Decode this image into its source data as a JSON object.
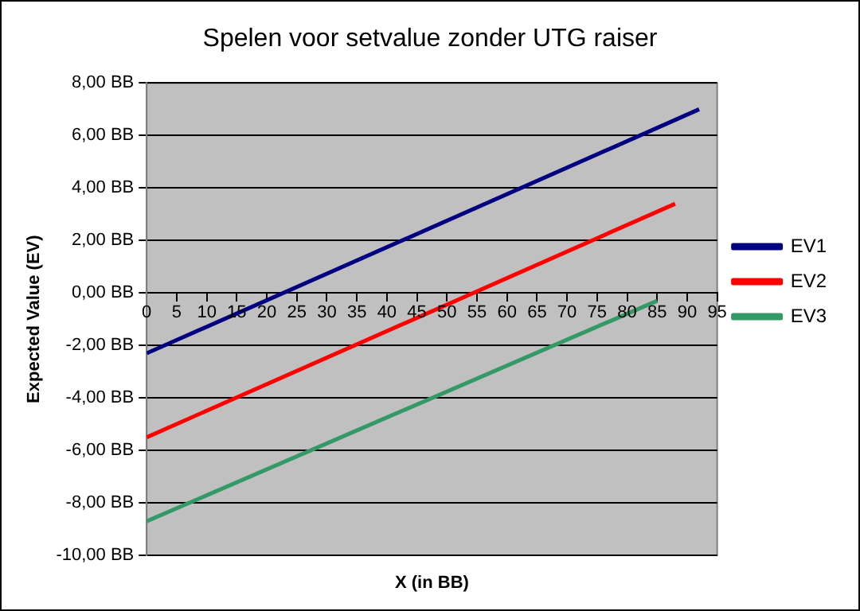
{
  "chart_data": {
    "type": "line",
    "title": "Spelen voor setvalue zonder UTG raiser",
    "xlabel": "X (in BB)",
    "ylabel": "Expected Value (EV)",
    "xlim": [
      0,
      95
    ],
    "xticks": [
      0,
      5,
      10,
      15,
      20,
      25,
      30,
      35,
      40,
      45,
      50,
      55,
      60,
      65,
      70,
      75,
      80,
      85,
      90,
      95
    ],
    "ylim": [
      -10,
      8
    ],
    "yticks": [
      {
        "value": -10,
        "label": "-10,00 BB"
      },
      {
        "value": -8,
        "label": "-8,00 BB"
      },
      {
        "value": -6,
        "label": "-6,00 BB"
      },
      {
        "value": -4,
        "label": "-4,00 BB"
      },
      {
        "value": -2,
        "label": "-2,00 BB"
      },
      {
        "value": 0,
        "label": "0,00 BB"
      },
      {
        "value": 2,
        "label": "2,00 BB"
      },
      {
        "value": 4,
        "label": "4,00 BB"
      },
      {
        "value": 6,
        "label": "6,00 BB"
      },
      {
        "value": 8,
        "label": "8,00 BB"
      }
    ],
    "grid": "y",
    "legend": "right",
    "marker": "none",
    "line_style": "solid",
    "series": [
      {
        "name": "EV1",
        "color": "#000080",
        "x": [
          0,
          92
        ],
        "values": [
          -2.3,
          7.0
        ]
      },
      {
        "name": "EV2",
        "color": "#ff0000",
        "x": [
          0,
          88
        ],
        "values": [
          -5.5,
          3.4
        ]
      },
      {
        "name": "EV3",
        "color": "#339966",
        "x": [
          0,
          85
        ],
        "values": [
          -8.7,
          -0.3
        ]
      }
    ]
  }
}
